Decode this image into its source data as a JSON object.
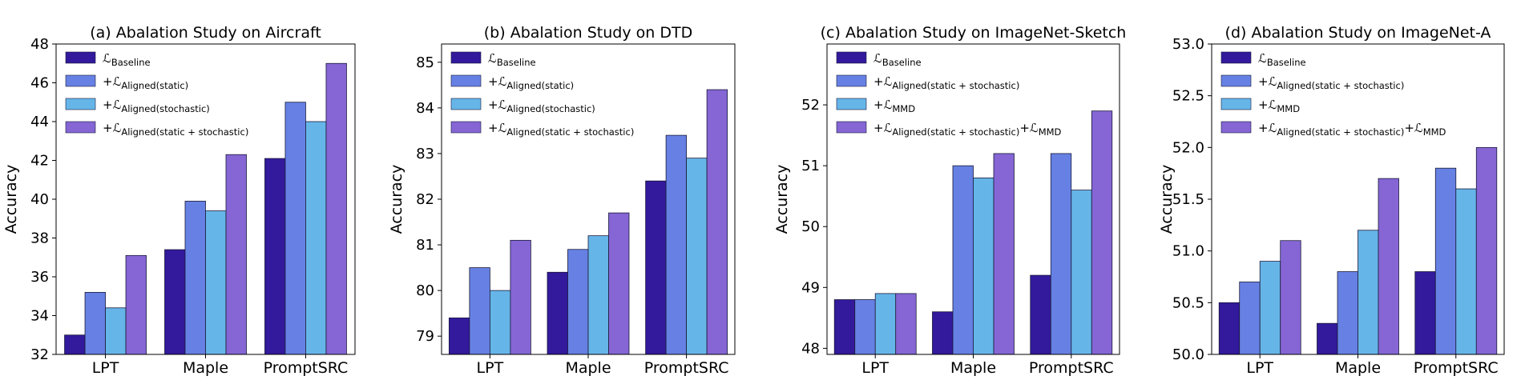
{
  "colors": [
    "#33199c",
    "#6681e3",
    "#66b5e8",
    "#8566d4"
  ],
  "chart_data": [
    {
      "type": "bar",
      "title": "(a) Abalation Study on Aircraft",
      "ylabel": "Accuracy",
      "xlabel": "",
      "categories": [
        "LPT",
        "Maple",
        "PromptSRC"
      ],
      "ylim": [
        32,
        48
      ],
      "yticks": [
        "32",
        "34",
        "36",
        "38",
        "40",
        "42",
        "44",
        "46",
        "48"
      ],
      "legend_position": "top-left",
      "series": [
        {
          "name": "L",
          "sub": "Baseline",
          "suffix": "",
          "values": [
            33.0,
            37.4,
            42.1
          ]
        },
        {
          "name": "+L",
          "sub": "Aligned(static)",
          "suffix": "",
          "values": [
            35.2,
            39.9,
            45.0
          ]
        },
        {
          "name": "+L",
          "sub": "Aligned(stochastic)",
          "suffix": "",
          "values": [
            34.4,
            39.4,
            44.0
          ]
        },
        {
          "name": "+L",
          "sub": "Aligned(static + stochastic)",
          "suffix": "",
          "values": [
            37.1,
            42.3,
            47.0
          ]
        }
      ]
    },
    {
      "type": "bar",
      "title": "(b) Abalation Study on DTD",
      "ylabel": "Accuracy",
      "xlabel": "",
      "categories": [
        "LPT",
        "Maple",
        "PromptSRC"
      ],
      "ylim": [
        78.6,
        85.4
      ],
      "yticks": [
        "79",
        "80",
        "81",
        "82",
        "83",
        "84",
        "85"
      ],
      "legend_position": "top-left",
      "series": [
        {
          "name": "L",
          "sub": "Baseline",
          "suffix": "",
          "values": [
            79.4,
            80.4,
            82.4
          ]
        },
        {
          "name": "+L",
          "sub": "Aligned(static)",
          "suffix": "",
          "values": [
            80.5,
            80.9,
            83.4
          ]
        },
        {
          "name": "+L",
          "sub": "Aligned(stochastic)",
          "suffix": "",
          "values": [
            80.0,
            81.2,
            82.9
          ]
        },
        {
          "name": "+L",
          "sub": "Aligned(static + stochastic)",
          "suffix": "",
          "values": [
            81.1,
            81.7,
            84.4
          ]
        }
      ]
    },
    {
      "type": "bar",
      "title": "(c) Abalation Study on ImageNet-Sketch",
      "ylabel": "Accuracy",
      "xlabel": "",
      "categories": [
        "LPT",
        "Maple",
        "PromptSRC"
      ],
      "ylim": [
        47.9,
        53.0
      ],
      "yticks": [
        "48",
        "49",
        "50",
        "51",
        "52"
      ],
      "legend_position": "top-left",
      "series": [
        {
          "name": "L",
          "sub": "Baseline",
          "suffix": "",
          "suffix_sub": "",
          "values": [
            48.8,
            48.6,
            49.2
          ]
        },
        {
          "name": "+L",
          "sub": "Aligned(static + stochastic)",
          "suffix": "",
          "suffix_sub": "",
          "values": [
            48.8,
            51.0,
            51.2
          ]
        },
        {
          "name": "+L",
          "sub": "MMD",
          "suffix": "",
          "suffix_sub": "",
          "values": [
            48.9,
            50.8,
            50.6
          ]
        },
        {
          "name": "+L",
          "sub": "Aligned(static + stochastic)",
          "suffix": "+L",
          "suffix_sub": "MMD",
          "values": [
            48.9,
            51.2,
            51.9
          ]
        }
      ]
    },
    {
      "type": "bar",
      "title": "(d) Abalation Study on ImageNet-A",
      "ylabel": "Accuracy",
      "xlabel": "",
      "categories": [
        "LPT",
        "Maple",
        "PromptSRC"
      ],
      "ylim": [
        50.0,
        53.0
      ],
      "yticks": [
        "50.0",
        "50.5",
        "51.0",
        "51.5",
        "52.0",
        "52.5",
        "53.0"
      ],
      "legend_position": "top-left",
      "series": [
        {
          "name": "L",
          "sub": "Baseline",
          "suffix": "",
          "suffix_sub": "",
          "values": [
            50.5,
            50.3,
            50.8
          ]
        },
        {
          "name": "+L",
          "sub": "Aligned(static + stochastic)",
          "suffix": "",
          "suffix_sub": "",
          "values": [
            50.7,
            50.8,
            51.8
          ]
        },
        {
          "name": "+L",
          "sub": "MMD",
          "suffix": "",
          "suffix_sub": "",
          "values": [
            50.9,
            51.2,
            51.6
          ]
        },
        {
          "name": "+L",
          "sub": "Aligned(static + stochastic)",
          "suffix": "+L",
          "suffix_sub": "MMD",
          "values": [
            51.1,
            51.7,
            52.0
          ]
        }
      ]
    }
  ]
}
